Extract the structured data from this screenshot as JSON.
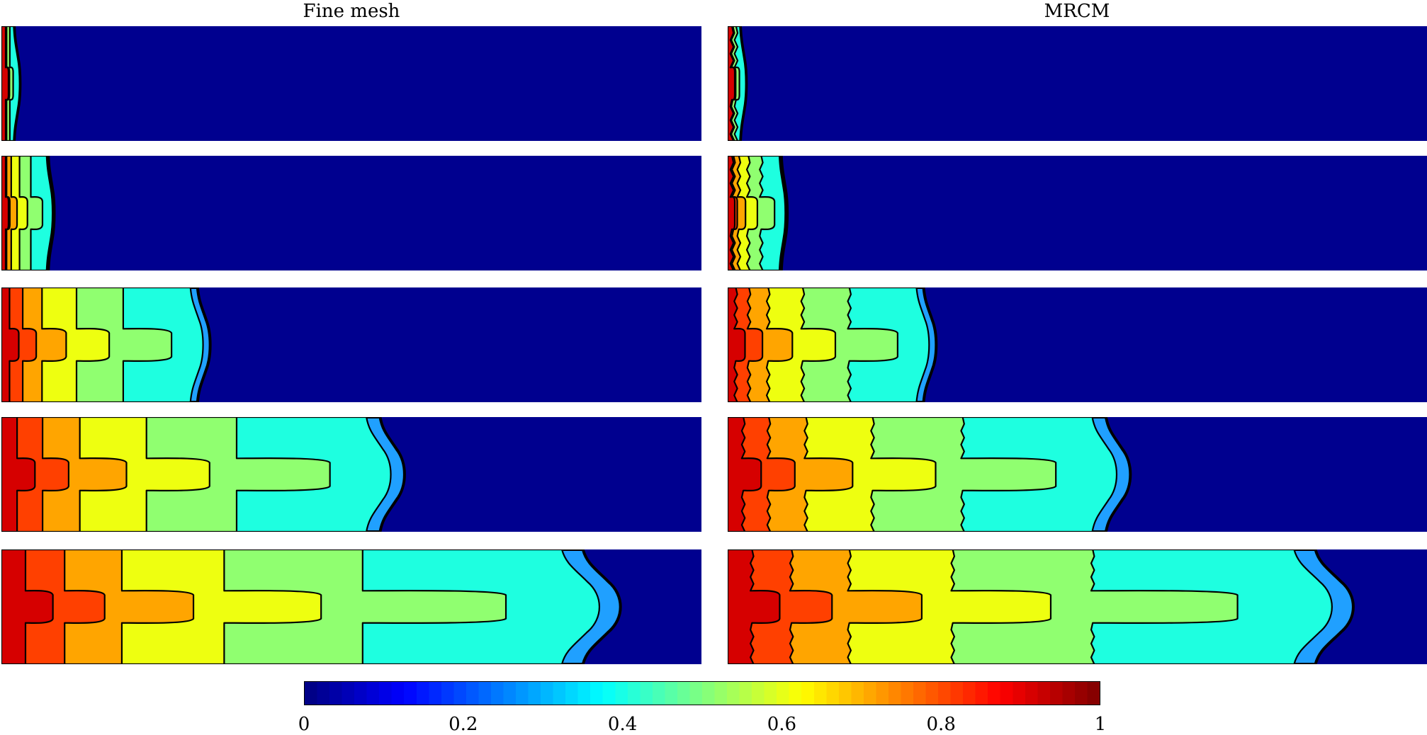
{
  "figure": {
    "column_titles": [
      "Fine mesh",
      "MRCM"
    ],
    "colorbar": {
      "ticks": [
        "0",
        "0.2",
        "0.4",
        "0.6",
        "0.8",
        "1"
      ],
      "min": 0,
      "max": 1,
      "colormap": "jet"
    }
  },
  "chart_data": {
    "type": "heatmap",
    "layout": "2 columns x 5 rows of filled-contour snapshots",
    "columns": [
      "Fine mesh",
      "MRCM"
    ],
    "snapshots": 5,
    "contour_levels": [
      0,
      0.1,
      0.2,
      0.3,
      0.4,
      0.5,
      0.6,
      0.7,
      0.8,
      0.9,
      1.0
    ],
    "front_extent_fraction_per_snapshot": {
      "Fine mesh": [
        0.02,
        0.07,
        0.29,
        0.56,
        0.86
      ],
      "MRCM": [
        0.02,
        0.08,
        0.29,
        0.56,
        0.87
      ]
    },
    "colors": {
      "1.0": "#D60000",
      "0.9": "#FF4000",
      "0.8": "#FFA500",
      "0.7": "#EEFF10",
      "0.6": "#90FF70",
      "0.4": "#1EFFE0",
      "0.2": "#20A0FF",
      "0.0": "#00008F"
    }
  }
}
